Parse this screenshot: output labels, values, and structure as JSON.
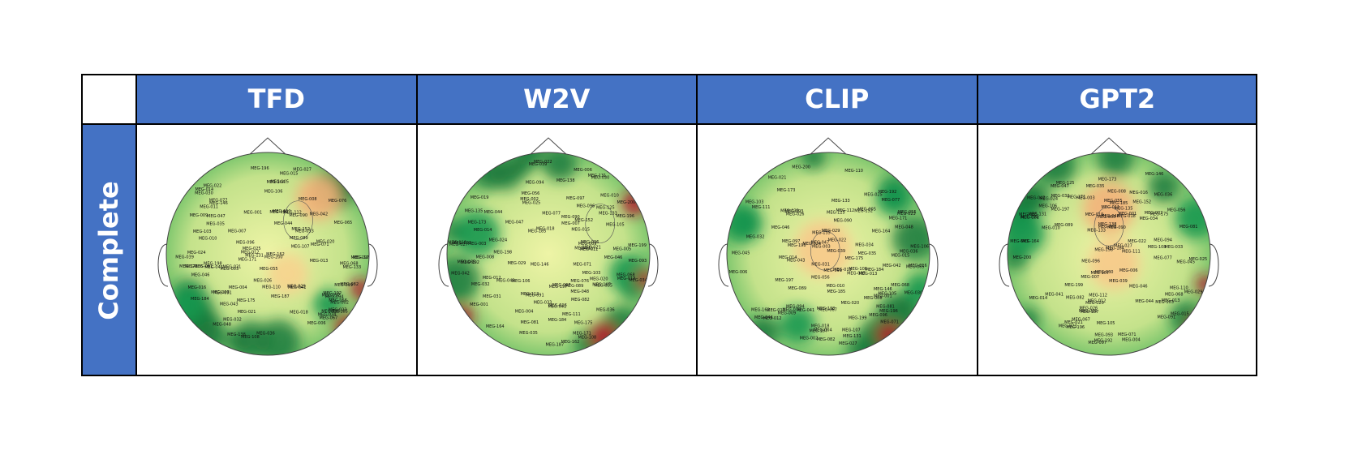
{
  "table": {
    "columns": [
      "TFD",
      "W2V",
      "CLIP",
      "GPT2"
    ],
    "row_label": "Complete"
  },
  "sensor_labels": [
    "MEG-110",
    "MEG-042",
    "MEG-093",
    "MEG-027",
    "MEG-094",
    "MEG-041",
    "MEG-047",
    "MEG-108",
    "MEG-032",
    "MEG-089",
    "MEG-111",
    "MEG-026",
    "MEG-029",
    "MEG-107",
    "MEG-048",
    "MEG-096",
    "MEG-067",
    "MEG-112",
    "MEG-025",
    "MEG-030",
    "MEG-097",
    "MEG-091",
    "MEG-106",
    "MEG-045",
    "MEG-046",
    "MEG-076",
    "MEG-036",
    "MEG-082",
    "MEG-043",
    "MEG-044",
    "MEG-103",
    "MEG-135",
    "MEG-039",
    "MEG-055",
    "MEG-009",
    "MEG-007",
    "MEG-024",
    "MEG-125",
    "MEG-081",
    "MEG-077",
    "MEG-056",
    "MEG-031",
    "MEG-020",
    "MEG-018",
    "MEG-008",
    "MEG-090",
    "MEG-035",
    "MEG-133",
    "MEG-146",
    "MEG-022",
    "MEG-021",
    "MEG-011",
    "MEG-001",
    "MEG-068",
    "MEG-034",
    "MEG-019",
    "MEG-012",
    "MEG-010",
    "MEG-002",
    "MEG-192",
    "MEG-006",
    "MEG-005",
    "MEG-023",
    "MEG-175",
    "MEG-131",
    "MEG-152",
    "MEG-004",
    "MEG-173",
    "MEG-015",
    "MEG-014",
    "MEG-198",
    "MEG-200",
    "MEG-016",
    "MEG-199",
    "MEG-187",
    "MEG-185",
    "MEG-164",
    "MEG-184",
    "MEG-197",
    "MEG-196",
    "MEG-162",
    "MEG-171",
    "MEG-013",
    "MEG-003",
    "MEG-105",
    "MEG-071",
    "MEG-065",
    "MEG-138",
    "MEG-033"
  ]
}
